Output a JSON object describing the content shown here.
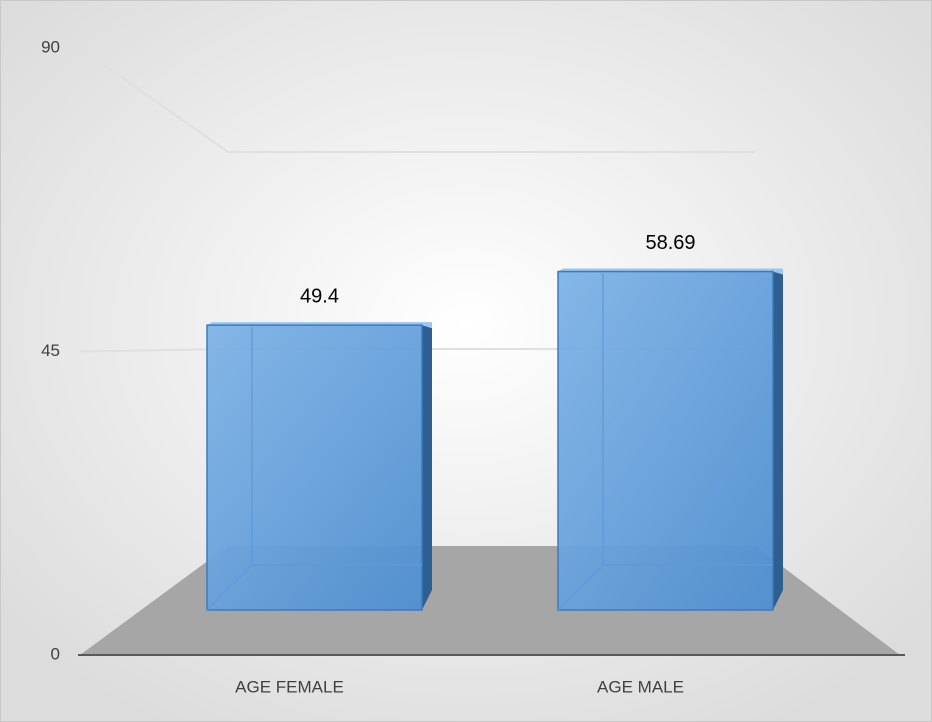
{
  "chart_data": {
    "type": "bar3d",
    "categories": [
      "AGE FEMALE",
      "AGE MALE"
    ],
    "values": [
      49.4,
      58.69
    ],
    "color": "#5b9bd5",
    "ylim": [
      0,
      90
    ],
    "yticks": [
      0,
      45,
      90
    ],
    "grid": true
  }
}
